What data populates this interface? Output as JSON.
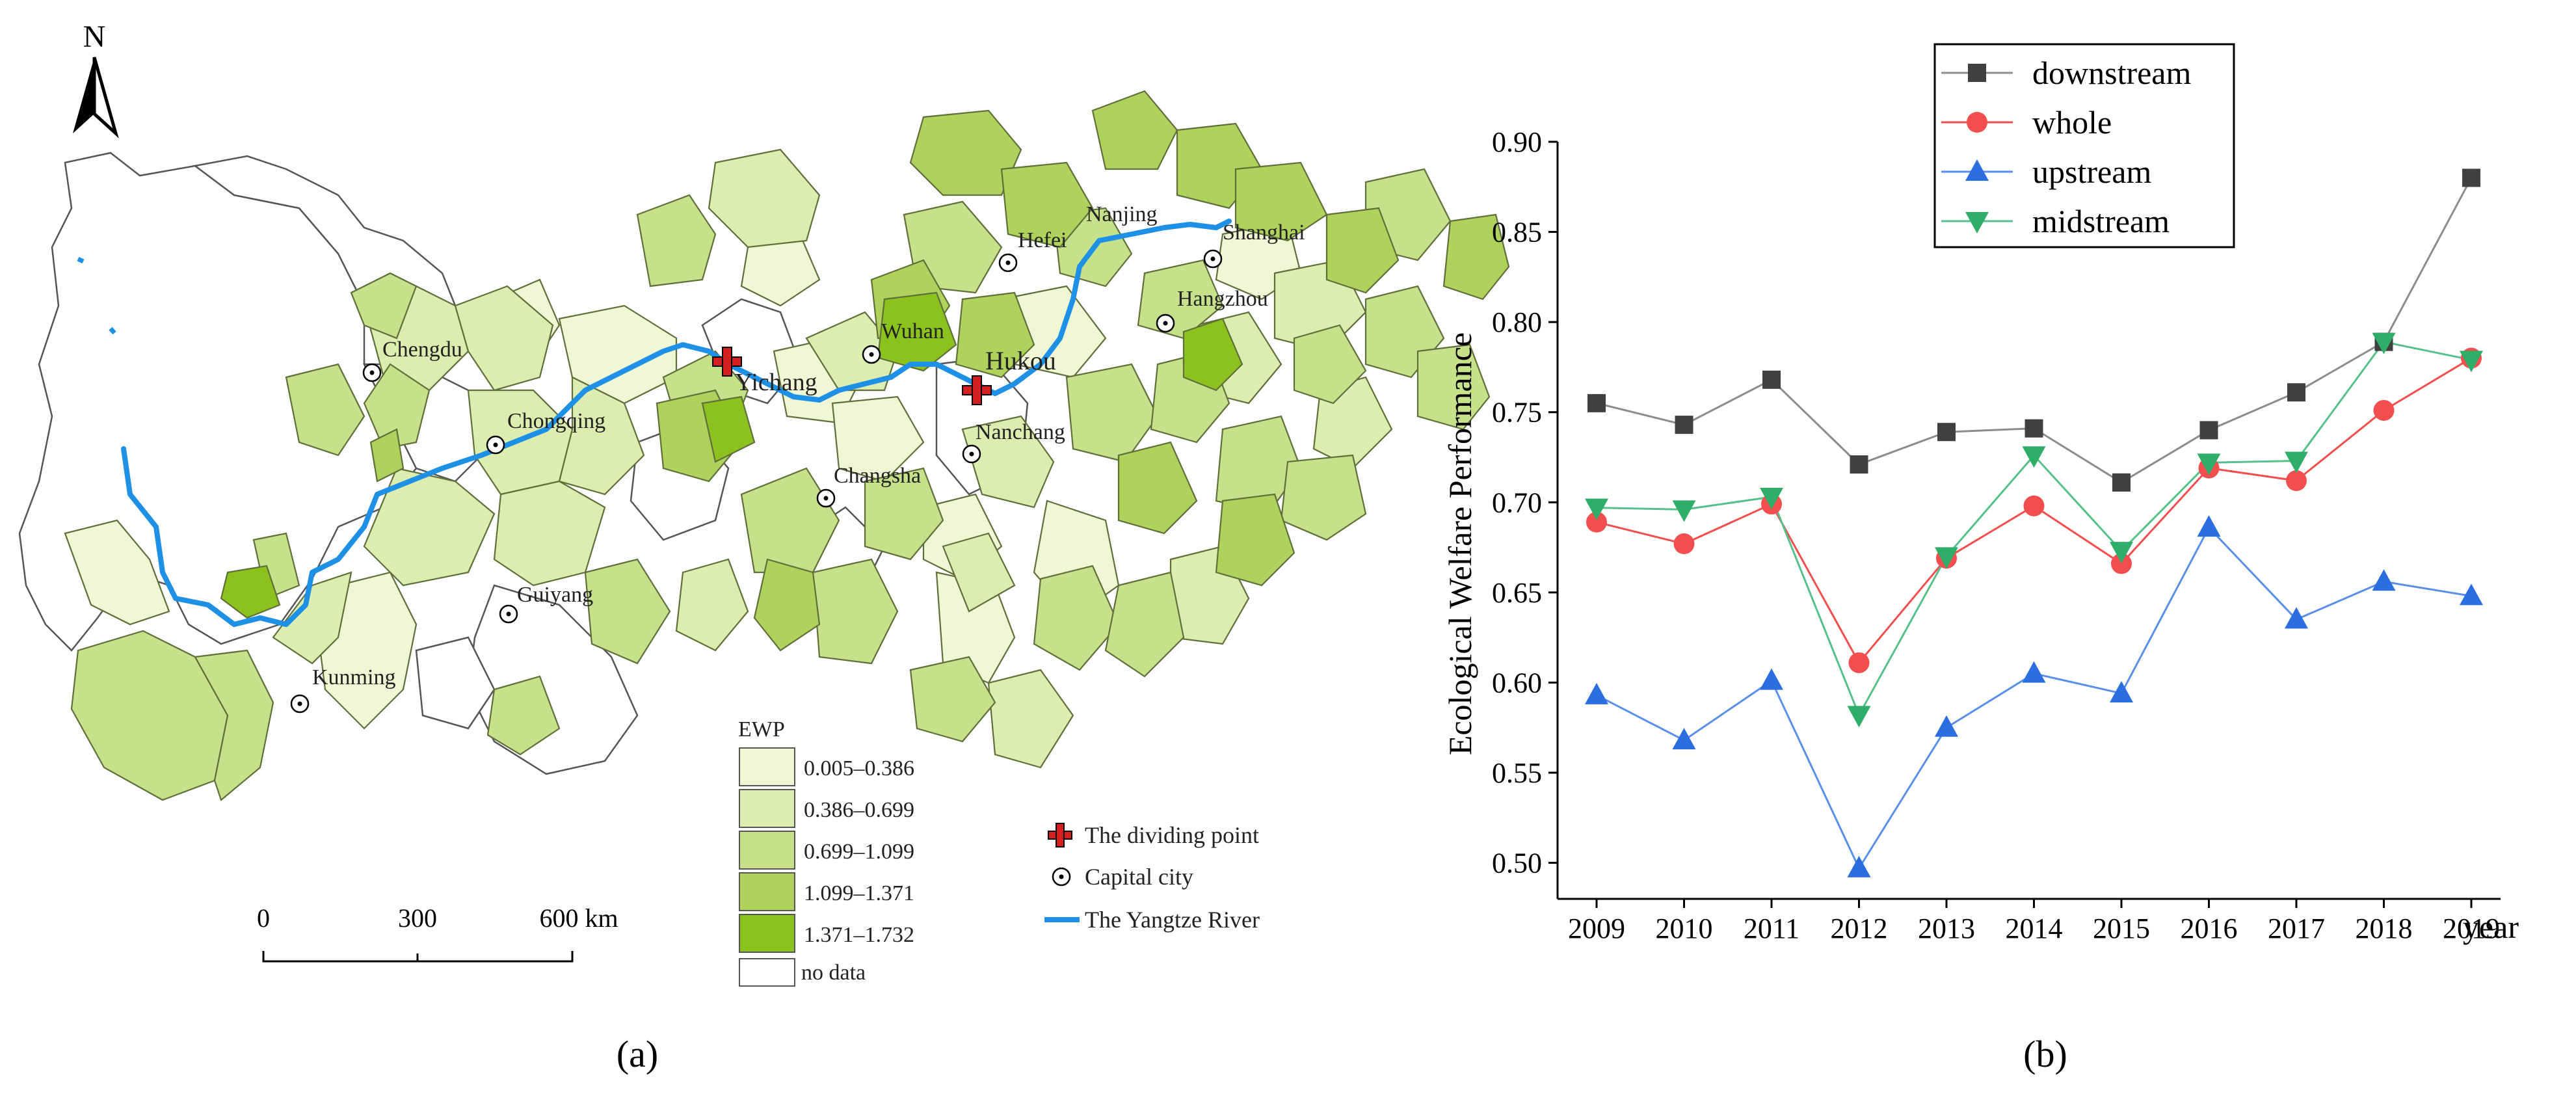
{
  "panel_a": {
    "caption": "(a)",
    "north_label": "N",
    "legend": {
      "title": "EWP",
      "classes": [
        {
          "label": "0.005–0.386",
          "color": "#f0f7d4"
        },
        {
          "label": "0.386–0.699",
          "color": "#dcedb0"
        },
        {
          "label": "0.699–1.099",
          "color": "#c5e18a"
        },
        {
          "label": "1.099–1.371",
          "color": "#aed25c"
        },
        {
          "label": "1.371–1.732",
          "color": "#8cc21e"
        }
      ],
      "no_data": "no data",
      "dividing_point": "The dividing point",
      "capital_city": "Capital city",
      "river": "The Yangtze River"
    },
    "scale": {
      "ticks": [
        "0",
        "300",
        "600 km"
      ]
    },
    "cities": [
      "Chengdu",
      "Chongqing",
      "Guiyang",
      "Kunming",
      "Yichang",
      "Wuhan",
      "Hukou",
      "Nanchang",
      "Changsha",
      "Hefei",
      "Nanjing",
      "Hangzhou",
      "Shanghai"
    ],
    "colors": {
      "river": "#1e90e6",
      "dividing_point": "#d42020",
      "border": "#5f6f3a"
    }
  },
  "chart_data": {
    "type": "line",
    "panel_caption": "(b)",
    "ylabel": "Ecological Welfare Performance",
    "xlabel": "year",
    "categories": [
      "2009",
      "2010",
      "2011",
      "2012",
      "2013",
      "2014",
      "2015",
      "2016",
      "2017",
      "2018",
      "2019"
    ],
    "ylim": [
      0.48,
      0.9
    ],
    "yticks": [
      "0.50",
      "0.55",
      "0.60",
      "0.65",
      "0.70",
      "0.75",
      "0.80",
      "0.85",
      "0.90"
    ],
    "legend_position": "top-center",
    "series": [
      {
        "name": "downstream",
        "color": "#404040",
        "line_color": "#8c8c8c",
        "marker": "square",
        "values": [
          0.755,
          0.743,
          0.768,
          0.721,
          0.739,
          0.741,
          0.711,
          0.74,
          0.761,
          0.789,
          0.88
        ]
      },
      {
        "name": "whole",
        "color": "#f24e4e",
        "line_color": "#f24e4e",
        "marker": "circle",
        "values": [
          0.689,
          0.677,
          0.699,
          0.611,
          0.669,
          0.698,
          0.666,
          0.719,
          0.712,
          0.751,
          0.78
        ]
      },
      {
        "name": "upstream",
        "color": "#2b6ee0",
        "line_color": "#5a8fe8",
        "marker": "triangle-up",
        "values": [
          0.593,
          0.568,
          0.601,
          0.497,
          0.575,
          0.605,
          0.594,
          0.686,
          0.635,
          0.656,
          0.648
        ]
      },
      {
        "name": "midstream",
        "color": "#2fae6a",
        "line_color": "#55c08a",
        "marker": "triangle-down",
        "values": [
          0.697,
          0.696,
          0.703,
          0.582,
          0.67,
          0.726,
          0.673,
          0.722,
          0.723,
          0.789,
          0.779
        ]
      }
    ]
  }
}
